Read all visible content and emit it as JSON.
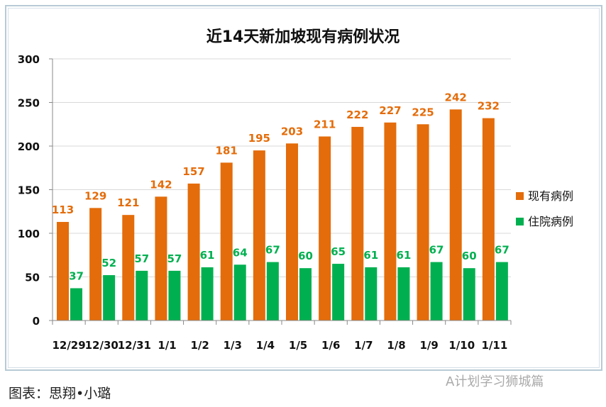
{
  "chart_data": {
    "type": "bar",
    "title": "近14天新加坡现有病例状况",
    "categories": [
      "12/29",
      "12/30",
      "12/31",
      "1/1",
      "1/2",
      "1/3",
      "1/4",
      "1/5",
      "1/6",
      "1/7",
      "1/8",
      "1/9",
      "1/10",
      "1/11"
    ],
    "series": [
      {
        "name": "现有病例",
        "color": "#E46C0A",
        "values": [
          113,
          129,
          121,
          142,
          157,
          181,
          195,
          203,
          211,
          222,
          227,
          225,
          242,
          232
        ]
      },
      {
        "name": "住院病例",
        "color": "#00B050",
        "values": [
          37,
          52,
          57,
          57,
          61,
          64,
          67,
          60,
          65,
          61,
          61,
          67,
          60,
          67
        ]
      }
    ],
    "ylim": [
      0,
      300
    ],
    "yticks": [
      0,
      50,
      100,
      150,
      200,
      250,
      300
    ],
    "grid": true,
    "legend": "right"
  },
  "caption": "图表：思翔•小璐",
  "watermark": "A计划学习狮城篇"
}
